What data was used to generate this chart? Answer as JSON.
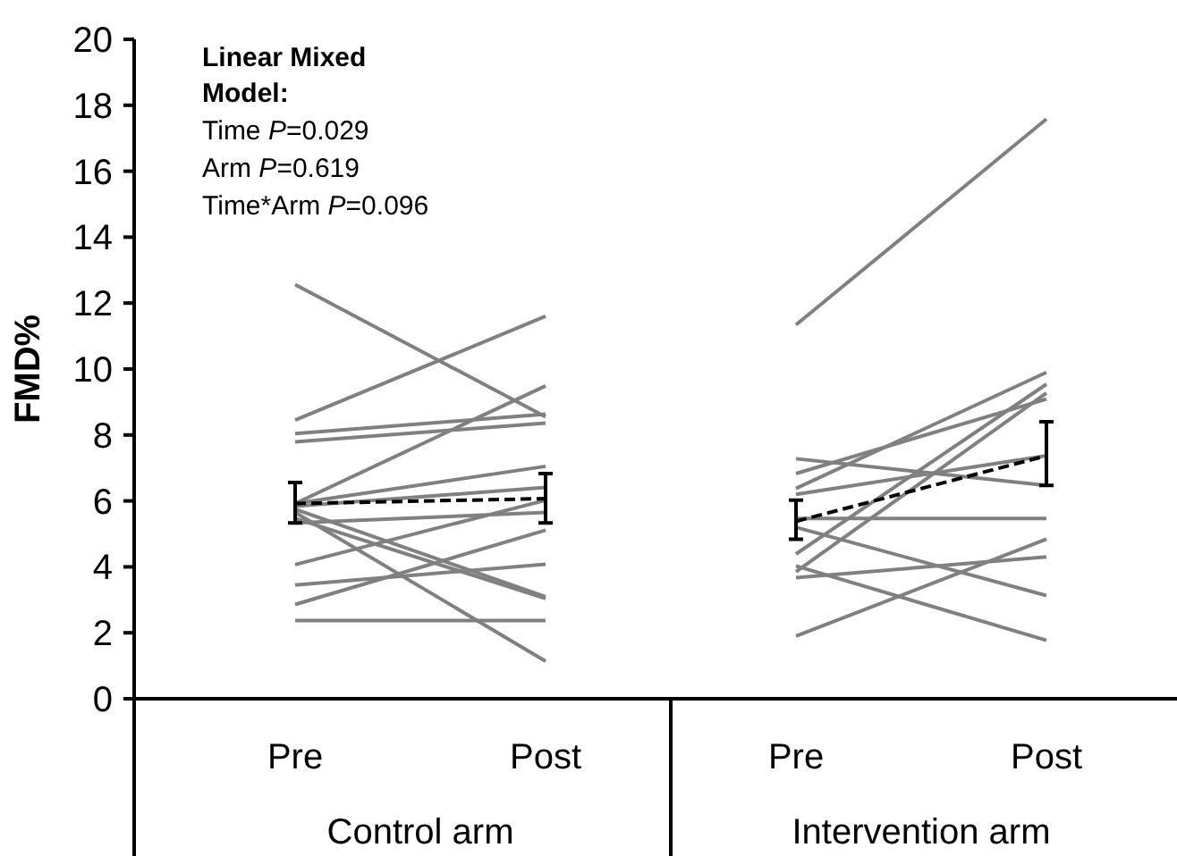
{
  "chart_data": [
    {
      "type": "line",
      "ylabel": "FMD%",
      "xlabel": "Control arm",
      "categories": [
        "Pre",
        "Post"
      ],
      "annotations": [
        "Linear Mixed Model:",
        "Time P=0.029",
        "Arm P=0.619",
        "Time*Arm P=0.096"
      ],
      "ylim": [
        0,
        20
      ],
      "yticks": [
        0,
        2,
        4,
        6,
        8,
        10,
        12,
        14,
        16,
        18,
        20
      ],
      "grid": false,
      "marker": "none",
      "series": [
        {
          "color": "#808080",
          "values": [
            12.56,
            8.55
          ]
        },
        {
          "color": "#808080",
          "values": [
            8.45,
            11.6
          ]
        },
        {
          "color": "#808080",
          "values": [
            8.04,
            8.63
          ]
        },
        {
          "color": "#808080",
          "values": [
            7.79,
            8.36
          ]
        },
        {
          "color": "#808080",
          "values": [
            5.92,
            9.49
          ]
        },
        {
          "color": "#808080",
          "values": [
            5.92,
            7.05
          ]
        },
        {
          "color": "#808080",
          "values": [
            5.84,
            6.41
          ]
        },
        {
          "color": "#808080",
          "values": [
            5.75,
            3.09
          ]
        },
        {
          "color": "#808080",
          "values": [
            5.65,
            1.14
          ]
        },
        {
          "color": "#808080",
          "values": [
            5.47,
            3.04
          ]
        },
        {
          "color": "#808080",
          "values": [
            5.33,
            5.65
          ]
        },
        {
          "color": "#808080",
          "values": [
            4.07,
            6.02
          ]
        },
        {
          "color": "#808080",
          "values": [
            3.45,
            4.08
          ]
        },
        {
          "color": "#808080",
          "values": [
            2.86,
            5.11
          ]
        },
        {
          "color": "#808080",
          "values": [
            2.37,
            2.37
          ]
        },
        {
          "color": "#000000",
          "line_style": "dashed",
          "values": [
            5.92,
            6.07
          ],
          "errors": [
            [
              5.33,
              6.56
            ],
            [
              5.33,
              6.83
            ]
          ]
        }
      ]
    },
    {
      "type": "line",
      "xlabel": "Intervention arm",
      "categories": [
        "Pre",
        "Post"
      ],
      "ylim": [
        0,
        20
      ],
      "tick_labels": "x",
      "grid": false,
      "marker": "none",
      "series": [
        {
          "color": "#808080",
          "values": [
            11.34,
            17.58
          ]
        },
        {
          "color": "#808080",
          "values": [
            7.28,
            6.47
          ]
        },
        {
          "color": "#808080",
          "values": [
            6.83,
            9.09
          ]
        },
        {
          "color": "#808080",
          "values": [
            6.38,
            9.9
          ]
        },
        {
          "color": "#808080",
          "values": [
            6.2,
            7.37
          ]
        },
        {
          "color": "#808080",
          "values": [
            5.47,
            5.47
          ]
        },
        {
          "color": "#808080",
          "values": [
            5.2,
            3.13
          ]
        },
        {
          "color": "#808080",
          "values": [
            4.39,
            9.54
          ]
        },
        {
          "color": "#808080",
          "values": [
            4.03,
            1.77
          ]
        },
        {
          "color": "#808080",
          "values": [
            3.85,
            9.27
          ]
        },
        {
          "color": "#808080",
          "values": [
            3.67,
            4.3
          ]
        },
        {
          "color": "#808080",
          "values": [
            1.9,
            4.84
          ]
        },
        {
          "color": "#000000",
          "line_style": "dashed",
          "values": [
            5.38,
            7.37
          ],
          "errors": [
            [
              4.84,
              6.02
            ],
            [
              6.47,
              8.4
            ]
          ]
        }
      ]
    }
  ]
}
